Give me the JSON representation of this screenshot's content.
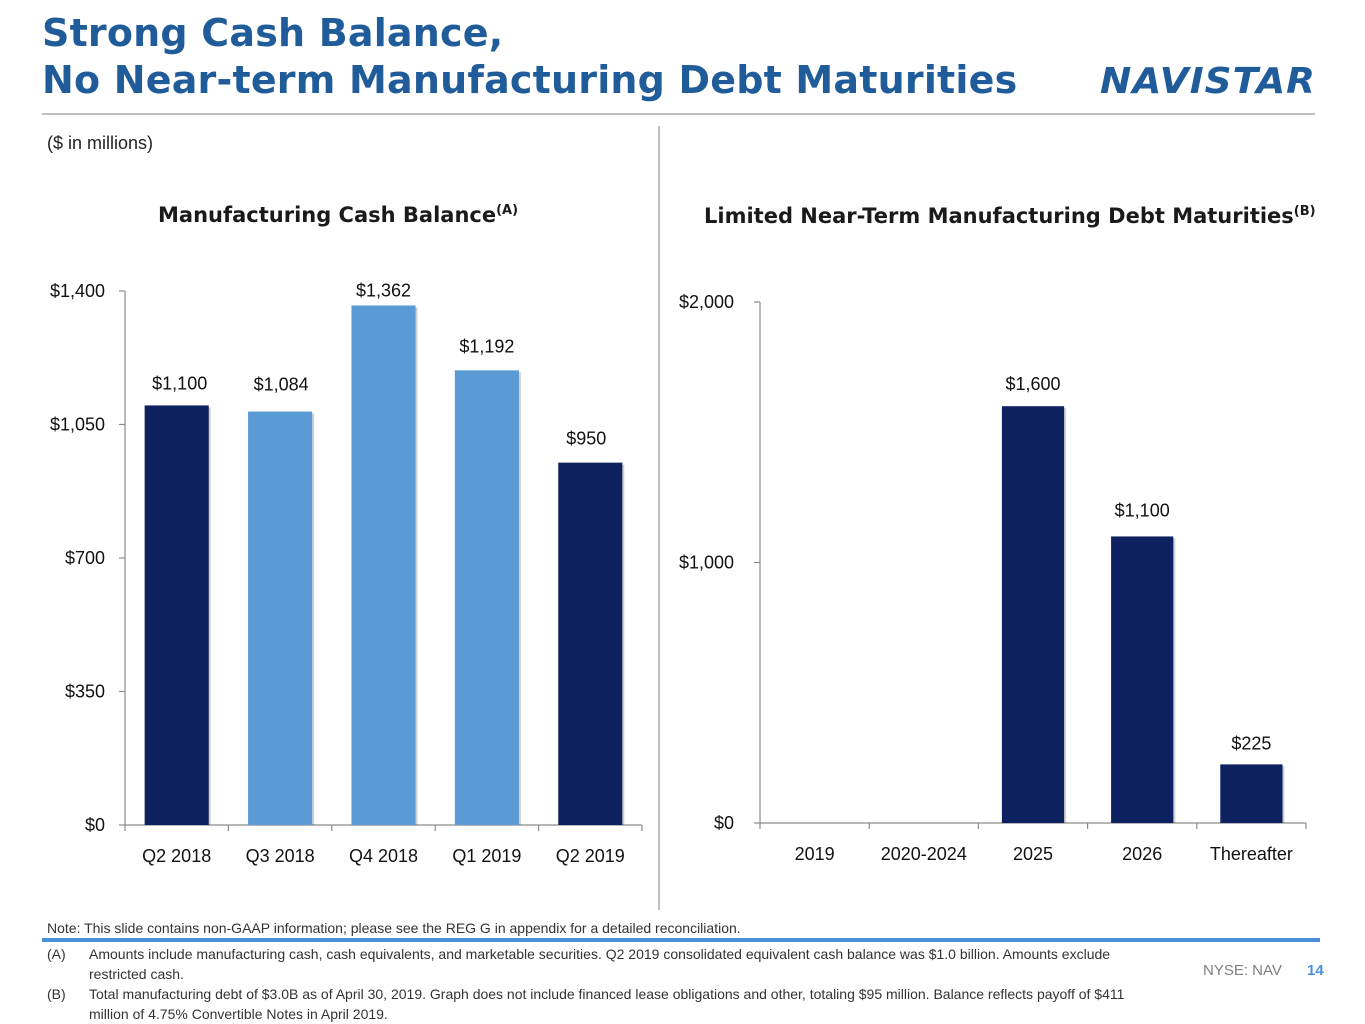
{
  "header": {
    "title_line1": "Strong Cash Balance,",
    "title_line2": "No Near-term Manufacturing Debt Maturities",
    "logo_text": "NAVISTAR",
    "units_note": "($ in millions)"
  },
  "colors": {
    "brand_blue": "#1f5c99",
    "navy_bar": "#0d2060",
    "light_bar": "#5b9bd5",
    "accent_rule": "#4a90d9"
  },
  "left_chart_title": {
    "text": "Manufacturing Cash Balance",
    "sup": "(A)"
  },
  "right_chart_title": {
    "text": "Limited Near-Term Manufacturing Debt Maturities",
    "sup": "(B)"
  },
  "chart_data": [
    {
      "type": "bar",
      "title": "Manufacturing Cash Balance(A)",
      "categories": [
        "Q2 2018",
        "Q3 2018",
        "Q4 2018",
        "Q1 2019",
        "Q2 2019"
      ],
      "values": [
        1100,
        1084,
        1362,
        1192,
        950
      ],
      "data_labels": [
        "$1,100",
        "$1,084",
        "$1,362",
        "$1,192",
        "$950"
      ],
      "bar_colors": [
        "#0d2060",
        "#5b9bd5",
        "#5b9bd5",
        "#5b9bd5",
        "#0d2060"
      ],
      "ylim": [
        0,
        1400
      ],
      "yticks": [
        0,
        350,
        700,
        1050,
        1400
      ],
      "ytick_labels": [
        "$0",
        "$350",
        "$700",
        "$1,050",
        "$1,400"
      ],
      "grid": false
    },
    {
      "type": "bar",
      "title": "Limited Near-Term Manufacturing Debt Maturities(B)",
      "categories": [
        "2019",
        "2020-2024",
        "2025",
        "2026",
        "Thereafter"
      ],
      "values": [
        0,
        0,
        1600,
        1100,
        225
      ],
      "data_labels": [
        "",
        "",
        "$1,600",
        "$1,100",
        "$225"
      ],
      "bar_colors": [
        "#0d2060",
        "#0d2060",
        "#0d2060",
        "#0d2060",
        "#0d2060"
      ],
      "ylim": [
        0,
        2000
      ],
      "yticks": [
        0,
        1000,
        2000
      ],
      "ytick_labels": [
        "$0",
        "$1,000",
        "$2,000"
      ],
      "grid": false
    }
  ],
  "footer": {
    "note": "Note: This slide contains non-GAAP information; please see the REG G in appendix for a detailed reconciliation.",
    "footnote_a_key": "(A)",
    "footnote_a_text": "Amounts include manufacturing cash, cash equivalents, and marketable securities. Q2 2019 consolidated equivalent cash balance was $1.0 billion. Amounts exclude restricted cash.",
    "footnote_b_key": "(B)",
    "footnote_b_text": "Total manufacturing debt of $3.0B as of April 30, 2019. Graph does not include financed lease obligations and other, totaling $95 million. Balance reflects payoff of $411 million of 4.75% Convertible Notes in April 2019.",
    "ticker": "NYSE: NAV",
    "page_number": "14"
  }
}
